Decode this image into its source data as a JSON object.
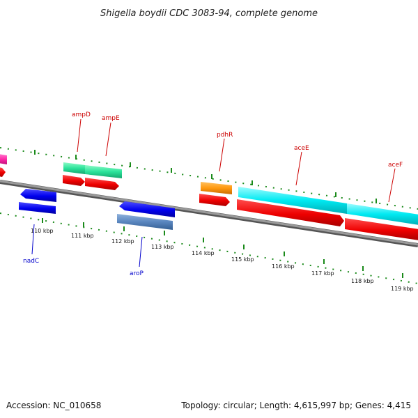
{
  "header": {
    "title": "Shigella boydii CDC 3083-94, complete genome"
  },
  "footer": {
    "accession": "Accession: NC_010658",
    "summary": "Topology: circular; Length: 4,615,997 bp; Genes: 4,415"
  },
  "colors": {
    "backbone": "#808080",
    "tick": "#1a8a1a",
    "label_forward": "#cc0000",
    "label_reverse": "#0000cc"
  },
  "ticks": [
    "110 kbp",
    "111 kbp",
    "112 kbp",
    "113 kbp",
    "114 kbp",
    "115 kbp",
    "116 kbp",
    "117 kbp",
    "118 kbp",
    "119 kbp"
  ],
  "genes_labeled": [
    {
      "name": "ampD",
      "strand": "forward"
    },
    {
      "name": "ampE",
      "strand": "forward"
    },
    {
      "name": "pdhR",
      "strand": "forward"
    },
    {
      "name": "aceE",
      "strand": "forward"
    },
    {
      "name": "aceF",
      "strand": "forward"
    },
    {
      "name": "nadC",
      "strand": "reverse"
    },
    {
      "name": "aroP",
      "strand": "reverse"
    }
  ]
}
